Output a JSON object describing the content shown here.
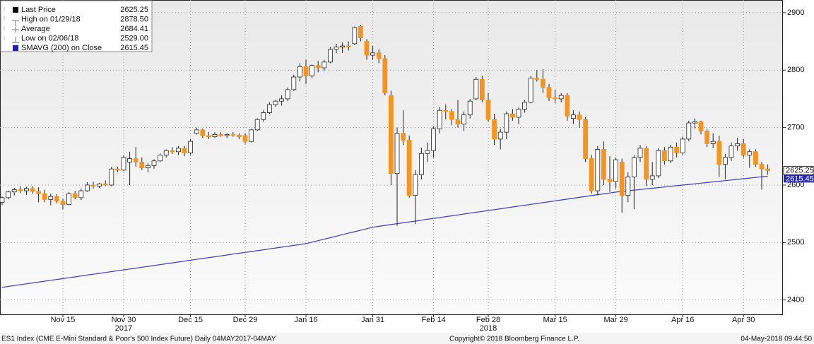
{
  "chart_data": {
    "type": "candlestick",
    "legend": [
      {
        "label": "Last Price",
        "value": "2625.25"
      },
      {
        "label": "High on 01/29/18",
        "value": "2878.50"
      },
      {
        "label": "Average",
        "value": "2684.41"
      },
      {
        "label": "Low on 02/06/18",
        "value": "2529.00"
      },
      {
        "label": "SMAVG (200) on Close",
        "value": "2615.45"
      }
    ],
    "up_color": "#ffffff",
    "down_color": "#f7941d",
    "open": [
      2570,
      2578,
      2588,
      2592,
      2590,
      2594,
      2589,
      2585,
      2575,
      2580,
      2572,
      2566,
      2585,
      2578,
      2590,
      2600,
      2598,
      2602,
      2600,
      2628,
      2626,
      2640,
      2646,
      2640,
      2630,
      2634,
      2642,
      2652,
      2660,
      2658,
      2664,
      2656,
      2690,
      2696,
      2686,
      2684,
      2688,
      2686,
      2688,
      2687,
      2686,
      2676,
      2696,
      2714,
      2726,
      2740,
      2746,
      2750,
      2766,
      2788,
      2806,
      2790,
      2808,
      2804,
      2814,
      2836,
      2840,
      2842,
      2846,
      2876,
      2850,
      2826,
      2830,
      2820,
      2756,
      2620,
      2690,
      2678,
      2582,
      2618,
      2655,
      2660,
      2698,
      2730,
      2728,
      2714,
      2706,
      2722,
      2750,
      2784,
      2748,
      2714,
      2680,
      2692,
      2724,
      2718,
      2732,
      2744,
      2786,
      2784,
      2770,
      2752,
      2750,
      2756,
      2716,
      2722,
      2714,
      2646,
      2590,
      2662,
      2610,
      2606,
      2640,
      2582,
      2614,
      2648,
      2664,
      2610,
      2616,
      2660,
      2642,
      2666,
      2656,
      2680,
      2708,
      2710,
      2694,
      2672,
      2676,
      2636,
      2648,
      2668,
      2672,
      2652,
      2658,
      2636,
      2628
    ],
    "high": [
      2580,
      2590,
      2595,
      2598,
      2597,
      2598,
      2596,
      2592,
      2585,
      2584,
      2576,
      2588,
      2590,
      2594,
      2605,
      2606,
      2604,
      2608,
      2632,
      2632,
      2652,
      2658,
      2666,
      2648,
      2638,
      2645,
      2655,
      2662,
      2666,
      2668,
      2668,
      2680,
      2700,
      2698,
      2692,
      2692,
      2692,
      2690,
      2692,
      2690,
      2690,
      2698,
      2716,
      2730,
      2744,
      2748,
      2756,
      2770,
      2792,
      2812,
      2818,
      2810,
      2816,
      2818,
      2840,
      2846,
      2848,
      2850,
      2876,
      2878.5,
      2854,
      2842,
      2836,
      2826,
      2764,
      2700,
      2730,
      2686,
      2626,
      2665,
      2674,
      2702,
      2736,
      2740,
      2732,
      2748,
      2728,
      2750,
      2788,
      2790,
      2760,
      2724,
      2698,
      2728,
      2732,
      2735,
      2748,
      2790,
      2800,
      2802,
      2776,
      2766,
      2760,
      2760,
      2730,
      2728,
      2718,
      2652,
      2668,
      2676,
      2650,
      2648,
      2646,
      2622,
      2652,
      2670,
      2668,
      2640,
      2664,
      2666,
      2670,
      2674,
      2684,
      2712,
      2716,
      2712,
      2698,
      2690,
      2686,
      2654,
      2674,
      2682,
      2680,
      2662,
      2662,
      2640,
      2636
    ],
    "low": [
      2565,
      2575,
      2582,
      2586,
      2583,
      2585,
      2570,
      2570,
      2565,
      2568,
      2558,
      2565,
      2575,
      2574,
      2588,
      2594,
      2595,
      2598,
      2598,
      2622,
      2624,
      2600,
      2632,
      2626,
      2622,
      2628,
      2640,
      2648,
      2654,
      2652,
      2650,
      2652,
      2688,
      2682,
      2680,
      2682,
      2684,
      2682,
      2684,
      2680,
      2672,
      2674,
      2694,
      2710,
      2724,
      2736,
      2738,
      2746,
      2764,
      2780,
      2776,
      2786,
      2796,
      2798,
      2812,
      2830,
      2830,
      2834,
      2844,
      2850,
      2818,
      2818,
      2812,
      2756,
      2600,
      2529,
      2670,
      2578,
      2532,
      2610,
      2640,
      2648,
      2690,
      2714,
      2704,
      2700,
      2694,
      2716,
      2748,
      2744,
      2710,
      2670,
      2662,
      2680,
      2712,
      2706,
      2726,
      2742,
      2780,
      2760,
      2746,
      2742,
      2744,
      2712,
      2706,
      2700,
      2640,
      2585,
      2582,
      2600,
      2588,
      2594,
      2552,
      2570,
      2558,
      2640,
      2598,
      2600,
      2612,
      2636,
      2638,
      2648,
      2652,
      2676,
      2698,
      2688,
      2666,
      2664,
      2614,
      2610,
      2642,
      2660,
      2648,
      2630,
      2632,
      2592,
      2618
    ],
    "close": [
      2578,
      2588,
      2592,
      2590,
      2594,
      2589,
      2585,
      2575,
      2580,
      2572,
      2566,
      2585,
      2578,
      2590,
      2600,
      2598,
      2602,
      2600,
      2628,
      2626,
      2648,
      2646,
      2640,
      2630,
      2634,
      2642,
      2652,
      2660,
      2658,
      2664,
      2656,
      2676,
      2696,
      2686,
      2684,
      2688,
      2686,
      2688,
      2687,
      2684,
      2676,
      2696,
      2714,
      2726,
      2740,
      2746,
      2750,
      2766,
      2788,
      2806,
      2790,
      2808,
      2804,
      2814,
      2836,
      2840,
      2842,
      2840,
      2874,
      2856,
      2826,
      2830,
      2820,
      2760,
      2620,
      2690,
      2678,
      2582,
      2618,
      2655,
      2660,
      2698,
      2730,
      2728,
      2714,
      2706,
      2722,
      2746,
      2784,
      2748,
      2714,
      2680,
      2692,
      2724,
      2718,
      2732,
      2744,
      2786,
      2784,
      2770,
      2752,
      2750,
      2756,
      2720,
      2722,
      2714,
      2646,
      2590,
      2662,
      2610,
      2606,
      2644,
      2582,
      2614,
      2648,
      2664,
      2610,
      2616,
      2660,
      2642,
      2666,
      2656,
      2680,
      2708,
      2710,
      2694,
      2672,
      2676,
      2636,
      2648,
      2668,
      2672,
      2652,
      2658,
      2636,
      2628,
      2625.25
    ],
    "sma": {
      "color": "#3b3bc8",
      "values": [
        2422,
        2423.5,
        2425,
        2426.6,
        2428.1,
        2429.6,
        2431.1,
        2432.6,
        2434.2,
        2435.7,
        2437.2,
        2438.7,
        2440.2,
        2441.8,
        2443.3,
        2444.8,
        2446.3,
        2447.8,
        2449.4,
        2450.9,
        2452.4,
        2453.9,
        2455.4,
        2457,
        2458.5,
        2460,
        2461.5,
        2463,
        2464.6,
        2466.1,
        2467.6,
        2469.1,
        2470.6,
        2472.2,
        2473.7,
        2475.2,
        2476.7,
        2478.2,
        2479.8,
        2481.3,
        2482.8,
        2484.3,
        2485.8,
        2487.4,
        2488.9,
        2490.4,
        2491.9,
        2493.4,
        2495,
        2496.5,
        2498,
        2500.6,
        2503.2,
        2505.8,
        2508.4,
        2511,
        2513.6,
        2516.2,
        2518.8,
        2521.4,
        2524,
        2526.6,
        2528.1,
        2529.7,
        2531.2,
        2532.7,
        2534.3,
        2535.8,
        2537.3,
        2538.8,
        2540.4,
        2541.9,
        2543.4,
        2545,
        2546.5,
        2548,
        2549.5,
        2551.1,
        2552.6,
        2554.1,
        2555.7,
        2557.2,
        2558.7,
        2560.2,
        2561.8,
        2563.3,
        2564.8,
        2566.4,
        2567.9,
        2569.4,
        2570.9,
        2572.5,
        2574,
        2575.5,
        2577.1,
        2578.6,
        2580.1,
        2581.6,
        2583.2,
        2584.7,
        2586.2,
        2587.8,
        2588.9,
        2590,
        2591.1,
        2592.2,
        2593.3,
        2594.4,
        2595.5,
        2596.6,
        2597.7,
        2598.8,
        2600,
        2601.1,
        2602.2,
        2603.3,
        2604.4,
        2605.5,
        2606.6,
        2607.7,
        2608.8,
        2609.9,
        2611,
        2612.1,
        2613.2,
        2614.3,
        2615.45
      ]
    },
    "ylim": [
      2375,
      2922
    ],
    "yticks": [
      2400,
      2500,
      2600,
      2700,
      2800,
      2900
    ],
    "xticks": [
      {
        "value": 10,
        "label": "Nov 15"
      },
      {
        "value": 20,
        "label": "Nov 30"
      },
      {
        "value": 31,
        "label": "Dec 15"
      },
      {
        "value": 40,
        "label": "Dec 29"
      },
      {
        "value": 50,
        "label": "Jan 16"
      },
      {
        "value": 61,
        "label": "Jan 31"
      },
      {
        "value": 71,
        "label": "Feb 14"
      },
      {
        "value": 80,
        "label": "Feb 28"
      },
      {
        "value": 91,
        "label": "Mar 15"
      },
      {
        "value": 101,
        "label": "Mar 29"
      },
      {
        "value": 112,
        "label": "Apr 16"
      },
      {
        "value": 122,
        "label": "Apr 30"
      }
    ],
    "year_labels": [
      {
        "value": 20,
        "label": "2017"
      },
      {
        "value": 80,
        "label": "2018"
      }
    ],
    "grid": true,
    "footer_left": "ES1 Index (CME E-Mini Standard & Poor's 500 Index Future)  Daily 04MAY2017-04MAY",
    "footer_center": "Copyright© 2018 Bloomberg Finance L.P.",
    "footer_right": "04-May-2018 09:44:50"
  }
}
